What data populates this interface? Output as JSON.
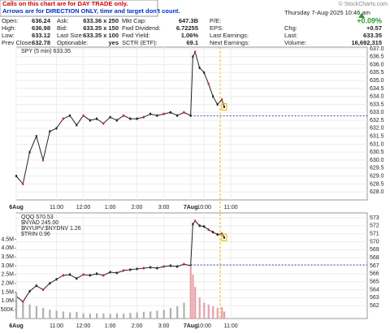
{
  "header": {
    "notice": [
      "Calls on this chart are for DAY TRADE only.",
      "Arrows are for DIRECTION ONLY, time and target don't count."
    ],
    "watermark": "© StockCharts.com",
    "date": "Thursday 7-Aug-2025 10:46 am",
    "quote": {
      "columns": [
        [
          {
            "label": "Open:",
            "value": "636.24"
          },
          {
            "label": "High:",
            "value": "636.98"
          },
          {
            "label": "Low:",
            "value": "633.12"
          },
          {
            "label": "Prev Close:",
            "value": "632.78"
          }
        ],
        [
          {
            "label": "Ask:",
            "value": "633.36 x 250"
          },
          {
            "label": "Bid:",
            "value": "633.35 x 150"
          },
          {
            "label": "Last Size:",
            "value": "633.35 x 100"
          },
          {
            "label": "Optionable:",
            "value": "yes"
          }
        ],
        [
          {
            "label": "Mkt Cap:",
            "value": "647.3B"
          },
          {
            "label": "Fwd Dividend:",
            "value": "6.72255"
          },
          {
            "label": "Fwd Yield:",
            "value": "1.06%"
          },
          {
            "label": "SCTR (ETF):",
            "value": "69.1"
          }
        ],
        [
          {
            "label": "P/E:"
          },
          {
            "label": "EPS:"
          },
          {
            "label": "Last Earnings:"
          },
          {
            "label": "Next Earnings:"
          }
        ],
        [
          {
            "value": "+0.09%"
          },
          {
            "label": "Chg:",
            "value": "+0.57"
          },
          {
            "label": "Last:",
            "value": "633.35"
          },
          {
            "label": "Volume:",
            "value": "16,692,315"
          }
        ]
      ]
    }
  },
  "chart_data": [
    {
      "type": "line",
      "xlim": [
        0,
        157
      ],
      "ylim": [
        627.5,
        637.1
      ],
      "reference_line": 632.78,
      "xticks": [
        {
          "value": 0,
          "label": "6Aug"
        },
        {
          "value": 18,
          "label": "11:00"
        },
        {
          "value": 30,
          "label": "12:00"
        },
        {
          "value": 42,
          "label": "1:00"
        },
        {
          "value": 54,
          "label": "2:00"
        },
        {
          "value": 66,
          "label": "3:00"
        },
        {
          "value": 78,
          "label": "7Aug"
        },
        {
          "value": 84,
          "label": "10:00"
        },
        {
          "value": 96,
          "label": "11:00"
        }
      ],
      "yticks": [
        {
          "value": 628,
          "label": "628.0"
        },
        628.5,
        {
          "value": 629,
          "label": "629.0"
        },
        629.5,
        {
          "value": 630,
          "label": "630.0"
        },
        630.5,
        {
          "value": 631,
          "label": "631.0"
        },
        631.5,
        {
          "value": 632,
          "label": "632.0"
        },
        632.5,
        {
          "value": 633,
          "label": "633.0"
        },
        633.5,
        {
          "value": 634,
          "label": "634.0"
        },
        634.5,
        {
          "value": 635,
          "label": "635.0"
        },
        635.5,
        {
          "value": 636,
          "label": "636.0"
        },
        636.5,
        {
          "value": 637,
          "label": "637.0"
        }
      ],
      "series": [
        {
          "name": "SPY (5 min) 633.35",
          "color": "#222222",
          "x": [
            0,
            3,
            6,
            9,
            12,
            15,
            18,
            21,
            24,
            27,
            30,
            33,
            36,
            39,
            42,
            45,
            48,
            51,
            54,
            57,
            60,
            63,
            66,
            69,
            72,
            75,
            78,
            79,
            80,
            82,
            84,
            86,
            88,
            90,
            92,
            93
          ],
          "values": [
            629.0,
            628.5,
            630.5,
            631.5,
            630.0,
            631.8,
            632.0,
            632.6,
            632.8,
            632.2,
            632.8,
            632.5,
            632.6,
            632.3,
            632.7,
            632.5,
            632.8,
            632.6,
            632.6,
            632.7,
            632.9,
            632.8,
            632.9,
            633.0,
            632.8,
            633.0,
            632.8,
            636.5,
            636.8,
            635.8,
            635.5,
            634.8,
            634.0,
            633.5,
            633.8,
            633.35
          ]
        }
      ]
    },
    {
      "type": "line",
      "xlim": [
        0,
        157
      ],
      "ylim": [
        560.4,
        573.6
      ],
      "y2lim": [
        0,
        6000000
      ],
      "reference_line": 567.1,
      "annotations": [
        "$NYAD 245.00",
        "$NYUPV:$NYDNV 1.26",
        "$TRIN 0.96"
      ],
      "xticks": [
        {
          "value": 0,
          "label": "6Aug"
        },
        {
          "value": 18,
          "label": "11:00"
        },
        {
          "value": 30,
          "label": "12:00"
        },
        {
          "value": 42,
          "label": "1:00"
        },
        {
          "value": 54,
          "label": "2:00"
        },
        {
          "value": 66,
          "label": "3:00"
        },
        {
          "value": 78,
          "label": "7Aug"
        },
        {
          "value": 84,
          "label": "10:00"
        },
        {
          "value": 96,
          "label": "11:00"
        }
      ],
      "yticks": [
        562,
        563,
        564,
        565,
        566,
        567,
        568,
        569,
        570,
        571,
        572,
        573
      ],
      "y2ticks": [
        {
          "value": 500000,
          "label": "500K"
        },
        {
          "value": 1000000,
          "label": "1.0M"
        },
        {
          "value": 1500000,
          "label": "1.5M"
        },
        {
          "value": 2000000,
          "label": "2.0M"
        },
        {
          "value": 2500000,
          "label": "2.5M"
        },
        {
          "value": 3000000,
          "label": "3.0M"
        },
        {
          "value": 3500000,
          "label": "3.5M"
        },
        {
          "value": 4000000,
          "label": "4.0M"
        },
        {
          "value": 4500000,
          "label": "4.5M"
        }
      ],
      "series": [
        {
          "name": "QQQ 570.53",
          "color": "#222222",
          "x": [
            0,
            3,
            6,
            9,
            12,
            15,
            18,
            21,
            24,
            27,
            30,
            33,
            36,
            39,
            42,
            45,
            48,
            51,
            54,
            57,
            60,
            63,
            66,
            69,
            72,
            75,
            78,
            79,
            80,
            82,
            84,
            86,
            88,
            90,
            92,
            93
          ],
          "values": [
            563.2,
            562.5,
            563.8,
            564.5,
            564.0,
            564.8,
            565.3,
            565.8,
            565.9,
            565.4,
            565.9,
            565.8,
            566.0,
            565.8,
            566.2,
            566.1,
            566.4,
            566.5,
            566.6,
            566.7,
            566.8,
            566.7,
            566.9,
            567.0,
            566.9,
            567.2,
            567.0,
            572.2,
            572.6,
            572.0,
            571.9,
            571.5,
            571.2,
            570.9,
            571.0,
            570.53
          ]
        },
        {
          "type": "bar",
          "axis": "y2",
          "color": "#b0b0b0",
          "x": [
            0,
            3,
            6,
            9,
            12,
            15,
            18,
            21,
            24,
            27,
            30,
            33,
            36,
            39,
            42,
            45,
            48,
            51,
            54,
            57,
            60,
            63,
            66,
            69,
            72,
            75,
            78,
            79,
            80,
            82,
            84,
            86,
            88,
            90,
            92,
            93
          ],
          "values": [
            1500000,
            900000,
            800000,
            700000,
            600000,
            500000,
            450000,
            400000,
            350000,
            380000,
            300000,
            280000,
            300000,
            290000,
            260000,
            300000,
            280000,
            320000,
            350000,
            380000,
            400000,
            450000,
            500000,
            600000,
            700000,
            900000,
            3000000,
            2500000,
            1800000,
            1200000,
            900000,
            800000,
            700000,
            600000,
            650000,
            400000
          ]
        }
      ]
    }
  ]
}
